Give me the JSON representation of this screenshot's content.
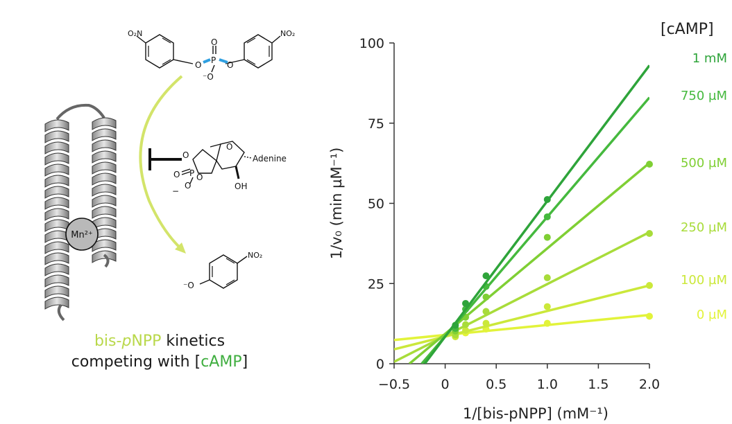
{
  "caption": {
    "part1": "bis-",
    "part1_italic": "p",
    "part1_end": "NPP",
    "part2": " kinetics",
    "line2_start": "competing with [",
    "line2_hl": "cAMP",
    "line2_end": "]"
  },
  "chemistry": {
    "substrate_no2_left": "O₂N",
    "substrate_no2_right": "NO₂",
    "substrate_O_left": "O",
    "substrate_P": "P",
    "substrate_O_right": "O",
    "substrate_O_top": "O",
    "substrate_O_minus": "⁻O",
    "inhibitor_adenine": "Adenine",
    "inhibitor_O_ring": "O",
    "inhibitor_O_ring2": "O",
    "inhibitor_O_ring3": "O",
    "inhibitor_P": "P",
    "inhibitor_O_dbl": "O",
    "inhibitor_O_minus": "O",
    "inhibitor_minus": "−",
    "inhibitor_OH": "OH",
    "product_O": "⁻O",
    "product_no2": "NO₂",
    "metal": "Mn²⁺"
  },
  "chart_data": {
    "type": "line+scatter",
    "xlabel": "1/[bis-pNPP] (mM⁻¹)",
    "ylabel": "1/v₀ (min µM⁻¹)",
    "xlim": [
      -0.5,
      2.0
    ],
    "ylim": [
      0,
      100
    ],
    "xticks": [
      -0.5,
      0,
      0.5,
      1.0,
      1.5,
      2.0
    ],
    "xtick_labels": [
      "−0.5",
      "0",
      "0.5",
      "1.0",
      "1.5",
      "2.0"
    ],
    "yticks": [
      0,
      25,
      50,
      75,
      100
    ],
    "ytick_labels": [
      "0",
      "25",
      "50",
      "75",
      "100"
    ],
    "legend_title": "[cAMP]",
    "legend_placement": "right",
    "series": [
      {
        "name": "0 µM",
        "color": "#e2f33a",
        "x": [
          0.1,
          0.2,
          0.4,
          1.0,
          2.0
        ],
        "y": [
          8.8,
          9.6,
          10.8,
          12.6,
          14.8
        ],
        "fit": [
          -0.5,
          7.4,
          2.0,
          15.2
        ]
      },
      {
        "name": "100 µM",
        "color": "#cbe83a",
        "x": [
          0.1,
          0.2,
          0.4,
          1.0,
          2.0
        ],
        "y": [
          8.4,
          10.4,
          12.6,
          17.8,
          24.4
        ],
        "fit": [
          -0.5,
          4.5,
          2.0,
          24.4
        ]
      },
      {
        "name": "250 µM",
        "color": "#a8dc3a",
        "x": [
          0.1,
          0.2,
          0.4,
          1.0,
          2.0
        ],
        "y": [
          9.0,
          12.2,
          16.3,
          26.8,
          40.6
        ],
        "fit": [
          -0.5,
          0.6,
          2.0,
          41.0
        ]
      },
      {
        "name": "500 µM",
        "color": "#7fcf34",
        "x": [
          0.1,
          0.2,
          0.4,
          1.0,
          2.0
        ],
        "y": [
          10.2,
          14.5,
          20.8,
          39.4,
          62.2
        ],
        "fit": [
          -0.35,
          0,
          2.0,
          62.6
        ]
      },
      {
        "name": "750 µM",
        "color": "#45b93e",
        "x": [
          0.1,
          0.2,
          0.4,
          1.0
        ],
        "y": [
          11.0,
          17.0,
          24.1,
          45.8
        ],
        "fit": [
          -0.23,
          0,
          2.0,
          83.0
        ]
      },
      {
        "name": "1 mM",
        "color": "#2ea43a",
        "x": [
          0.1,
          0.2,
          0.4,
          1.0
        ],
        "y": [
          12.0,
          18.8,
          27.4,
          51.2
        ],
        "fit": [
          -0.2,
          0,
          2.0,
          93.0
        ]
      }
    ]
  }
}
